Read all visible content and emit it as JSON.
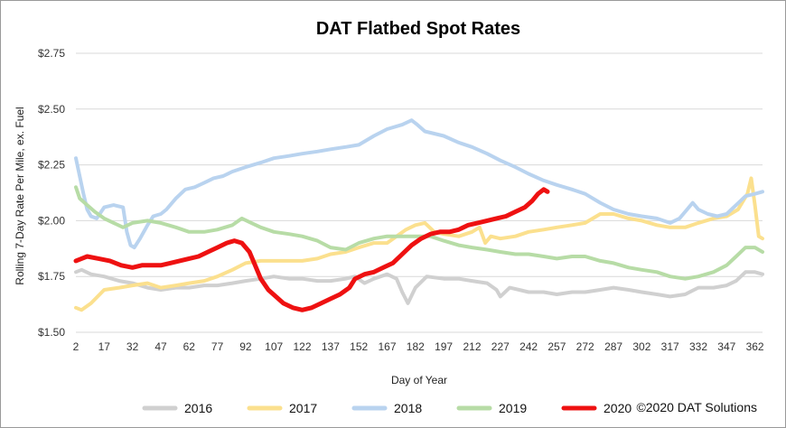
{
  "chart_data": {
    "type": "line",
    "title": "DAT Flatbed Spot Rates",
    "xlabel": "Day of Year",
    "ylabel": "Rolling 7-Day Rate Per Mile, ex. Fuel",
    "ylim": [
      1.5,
      2.75
    ],
    "xlim": [
      2,
      366
    ],
    "y_ticks": [
      1.5,
      1.75,
      2.0,
      2.25,
      2.5,
      2.75
    ],
    "y_tick_labels": [
      "$1.50",
      "$1.75",
      "$2.00",
      "$2.25",
      "$2.50",
      "$2.75"
    ],
    "x_ticks": [
      2,
      17,
      32,
      47,
      62,
      77,
      92,
      107,
      122,
      137,
      152,
      167,
      182,
      197,
      212,
      227,
      242,
      257,
      272,
      287,
      302,
      317,
      332,
      347,
      362
    ],
    "grid": "horizontal",
    "legend_position": "bottom",
    "copyright": "©2020 DAT Solutions",
    "series": [
      {
        "name": "2016",
        "color": "#d0d0d0",
        "points": [
          [
            2,
            1.77
          ],
          [
            5,
            1.78
          ],
          [
            10,
            1.76
          ],
          [
            17,
            1.75
          ],
          [
            25,
            1.73
          ],
          [
            32,
            1.72
          ],
          [
            40,
            1.7
          ],
          [
            47,
            1.69
          ],
          [
            55,
            1.7
          ],
          [
            62,
            1.7
          ],
          [
            70,
            1.71
          ],
          [
            77,
            1.71
          ],
          [
            85,
            1.72
          ],
          [
            92,
            1.73
          ],
          [
            100,
            1.74
          ],
          [
            107,
            1.75
          ],
          [
            115,
            1.74
          ],
          [
            122,
            1.74
          ],
          [
            130,
            1.73
          ],
          [
            137,
            1.73
          ],
          [
            145,
            1.74
          ],
          [
            150,
            1.75
          ],
          [
            155,
            1.72
          ],
          [
            160,
            1.74
          ],
          [
            167,
            1.76
          ],
          [
            172,
            1.74
          ],
          [
            175,
            1.68
          ],
          [
            178,
            1.63
          ],
          [
            182,
            1.7
          ],
          [
            188,
            1.75
          ],
          [
            197,
            1.74
          ],
          [
            205,
            1.74
          ],
          [
            212,
            1.73
          ],
          [
            220,
            1.72
          ],
          [
            225,
            1.69
          ],
          [
            227,
            1.66
          ],
          [
            232,
            1.7
          ],
          [
            237,
            1.69
          ],
          [
            242,
            1.68
          ],
          [
            250,
            1.68
          ],
          [
            257,
            1.67
          ],
          [
            265,
            1.68
          ],
          [
            272,
            1.68
          ],
          [
            280,
            1.69
          ],
          [
            287,
            1.7
          ],
          [
            295,
            1.69
          ],
          [
            302,
            1.68
          ],
          [
            310,
            1.67
          ],
          [
            317,
            1.66
          ],
          [
            325,
            1.67
          ],
          [
            332,
            1.7
          ],
          [
            340,
            1.7
          ],
          [
            347,
            1.71
          ],
          [
            352,
            1.73
          ],
          [
            357,
            1.77
          ],
          [
            362,
            1.77
          ],
          [
            366,
            1.76
          ]
        ]
      },
      {
        "name": "2017",
        "color": "#fbe08e",
        "points": [
          [
            2,
            1.61
          ],
          [
            5,
            1.6
          ],
          [
            10,
            1.63
          ],
          [
            17,
            1.69
          ],
          [
            25,
            1.7
          ],
          [
            32,
            1.71
          ],
          [
            40,
            1.72
          ],
          [
            47,
            1.7
          ],
          [
            55,
            1.71
          ],
          [
            62,
            1.72
          ],
          [
            70,
            1.73
          ],
          [
            77,
            1.75
          ],
          [
            85,
            1.78
          ],
          [
            92,
            1.81
          ],
          [
            100,
            1.82
          ],
          [
            107,
            1.82
          ],
          [
            115,
            1.82
          ],
          [
            122,
            1.82
          ],
          [
            130,
            1.83
          ],
          [
            137,
            1.85
          ],
          [
            145,
            1.86
          ],
          [
            152,
            1.88
          ],
          [
            160,
            1.9
          ],
          [
            167,
            1.9
          ],
          [
            172,
            1.93
          ],
          [
            177,
            1.96
          ],
          [
            182,
            1.98
          ],
          [
            187,
            1.99
          ],
          [
            192,
            1.95
          ],
          [
            197,
            1.94
          ],
          [
            205,
            1.93
          ],
          [
            212,
            1.95
          ],
          [
            216,
            1.97
          ],
          [
            219,
            1.9
          ],
          [
            222,
            1.93
          ],
          [
            227,
            1.92
          ],
          [
            235,
            1.93
          ],
          [
            242,
            1.95
          ],
          [
            250,
            1.96
          ],
          [
            257,
            1.97
          ],
          [
            265,
            1.98
          ],
          [
            272,
            1.99
          ],
          [
            280,
            2.03
          ],
          [
            287,
            2.03
          ],
          [
            295,
            2.01
          ],
          [
            302,
            2.0
          ],
          [
            310,
            1.98
          ],
          [
            317,
            1.97
          ],
          [
            325,
            1.97
          ],
          [
            332,
            1.99
          ],
          [
            340,
            2.01
          ],
          [
            347,
            2.02
          ],
          [
            353,
            2.05
          ],
          [
            358,
            2.12
          ],
          [
            360,
            2.19
          ],
          [
            362,
            2.07
          ],
          [
            364,
            1.93
          ],
          [
            366,
            1.92
          ]
        ]
      },
      {
        "name": "2018",
        "color": "#b9d3ef",
        "points": [
          [
            2,
            2.28
          ],
          [
            4,
            2.2
          ],
          [
            6,
            2.12
          ],
          [
            8,
            2.05
          ],
          [
            10,
            2.02
          ],
          [
            13,
            2.01
          ],
          [
            17,
            2.06
          ],
          [
            22,
            2.07
          ],
          [
            27,
            2.06
          ],
          [
            29,
            1.95
          ],
          [
            31,
            1.89
          ],
          [
            33,
            1.88
          ],
          [
            36,
            1.92
          ],
          [
            40,
            1.98
          ],
          [
            43,
            2.02
          ],
          [
            47,
            2.03
          ],
          [
            50,
            2.05
          ],
          [
            55,
            2.1
          ],
          [
            60,
            2.14
          ],
          [
            65,
            2.15
          ],
          [
            70,
            2.17
          ],
          [
            75,
            2.19
          ],
          [
            80,
            2.2
          ],
          [
            85,
            2.22
          ],
          [
            92,
            2.24
          ],
          [
            100,
            2.26
          ],
          [
            107,
            2.28
          ],
          [
            115,
            2.29
          ],
          [
            122,
            2.3
          ],
          [
            130,
            2.31
          ],
          [
            137,
            2.32
          ],
          [
            145,
            2.33
          ],
          [
            152,
            2.34
          ],
          [
            160,
            2.38
          ],
          [
            167,
            2.41
          ],
          [
            175,
            2.43
          ],
          [
            180,
            2.45
          ],
          [
            183,
            2.43
          ],
          [
            187,
            2.4
          ],
          [
            197,
            2.38
          ],
          [
            205,
            2.35
          ],
          [
            212,
            2.33
          ],
          [
            220,
            2.3
          ],
          [
            227,
            2.27
          ],
          [
            235,
            2.24
          ],
          [
            242,
            2.21
          ],
          [
            250,
            2.18
          ],
          [
            257,
            2.16
          ],
          [
            265,
            2.14
          ],
          [
            272,
            2.12
          ],
          [
            280,
            2.08
          ],
          [
            287,
            2.05
          ],
          [
            295,
            2.03
          ],
          [
            302,
            2.02
          ],
          [
            310,
            2.01
          ],
          [
            317,
            1.99
          ],
          [
            322,
            2.01
          ],
          [
            326,
            2.05
          ],
          [
            329,
            2.08
          ],
          [
            332,
            2.05
          ],
          [
            337,
            2.03
          ],
          [
            342,
            2.02
          ],
          [
            347,
            2.03
          ],
          [
            352,
            2.07
          ],
          [
            357,
            2.11
          ],
          [
            362,
            2.12
          ],
          [
            366,
            2.13
          ]
        ]
      },
      {
        "name": "2019",
        "color": "#b7dca6",
        "points": [
          [
            2,
            2.15
          ],
          [
            4,
            2.1
          ],
          [
            8,
            2.07
          ],
          [
            12,
            2.04
          ],
          [
            17,
            2.01
          ],
          [
            22,
            1.99
          ],
          [
            27,
            1.97
          ],
          [
            32,
            1.99
          ],
          [
            40,
            2.0
          ],
          [
            47,
            1.99
          ],
          [
            55,
            1.97
          ],
          [
            62,
            1.95
          ],
          [
            70,
            1.95
          ],
          [
            77,
            1.96
          ],
          [
            85,
            1.98
          ],
          [
            90,
            2.01
          ],
          [
            95,
            1.99
          ],
          [
            100,
            1.97
          ],
          [
            107,
            1.95
          ],
          [
            115,
            1.94
          ],
          [
            122,
            1.93
          ],
          [
            130,
            1.91
          ],
          [
            137,
            1.88
          ],
          [
            145,
            1.87
          ],
          [
            152,
            1.9
          ],
          [
            160,
            1.92
          ],
          [
            167,
            1.93
          ],
          [
            175,
            1.93
          ],
          [
            182,
            1.93
          ],
          [
            190,
            1.93
          ],
          [
            197,
            1.91
          ],
          [
            205,
            1.89
          ],
          [
            212,
            1.88
          ],
          [
            220,
            1.87
          ],
          [
            227,
            1.86
          ],
          [
            235,
            1.85
          ],
          [
            242,
            1.85
          ],
          [
            250,
            1.84
          ],
          [
            257,
            1.83
          ],
          [
            265,
            1.84
          ],
          [
            272,
            1.84
          ],
          [
            280,
            1.82
          ],
          [
            287,
            1.81
          ],
          [
            295,
            1.79
          ],
          [
            302,
            1.78
          ],
          [
            310,
            1.77
          ],
          [
            317,
            1.75
          ],
          [
            325,
            1.74
          ],
          [
            332,
            1.75
          ],
          [
            340,
            1.77
          ],
          [
            347,
            1.8
          ],
          [
            352,
            1.84
          ],
          [
            357,
            1.88
          ],
          [
            362,
            1.88
          ],
          [
            366,
            1.86
          ]
        ]
      },
      {
        "name": "2020",
        "color": "#ee1111",
        "points": [
          [
            2,
            1.82
          ],
          [
            5,
            1.83
          ],
          [
            8,
            1.84
          ],
          [
            14,
            1.83
          ],
          [
            20,
            1.82
          ],
          [
            26,
            1.8
          ],
          [
            32,
            1.79
          ],
          [
            37,
            1.8
          ],
          [
            42,
            1.8
          ],
          [
            47,
            1.8
          ],
          [
            52,
            1.81
          ],
          [
            57,
            1.82
          ],
          [
            62,
            1.83
          ],
          [
            67,
            1.84
          ],
          [
            72,
            1.86
          ],
          [
            77,
            1.88
          ],
          [
            82,
            1.9
          ],
          [
            86,
            1.91
          ],
          [
            90,
            1.9
          ],
          [
            94,
            1.86
          ],
          [
            97,
            1.8
          ],
          [
            100,
            1.74
          ],
          [
            104,
            1.69
          ],
          [
            108,
            1.66
          ],
          [
            112,
            1.63
          ],
          [
            117,
            1.61
          ],
          [
            122,
            1.6
          ],
          [
            127,
            1.61
          ],
          [
            132,
            1.63
          ],
          [
            137,
            1.65
          ],
          [
            142,
            1.67
          ],
          [
            147,
            1.7
          ],
          [
            150,
            1.74
          ],
          [
            155,
            1.76
          ],
          [
            160,
            1.77
          ],
          [
            165,
            1.79
          ],
          [
            170,
            1.81
          ],
          [
            175,
            1.85
          ],
          [
            180,
            1.89
          ],
          [
            185,
            1.92
          ],
          [
            190,
            1.94
          ],
          [
            195,
            1.95
          ],
          [
            200,
            1.95
          ],
          [
            205,
            1.96
          ],
          [
            210,
            1.98
          ],
          [
            215,
            1.99
          ],
          [
            220,
            2.0
          ],
          [
            225,
            2.01
          ],
          [
            230,
            2.02
          ],
          [
            235,
            2.04
          ],
          [
            240,
            2.06
          ],
          [
            244,
            2.09
          ],
          [
            247,
            2.12
          ],
          [
            250,
            2.14
          ],
          [
            252,
            2.13
          ]
        ]
      }
    ]
  }
}
